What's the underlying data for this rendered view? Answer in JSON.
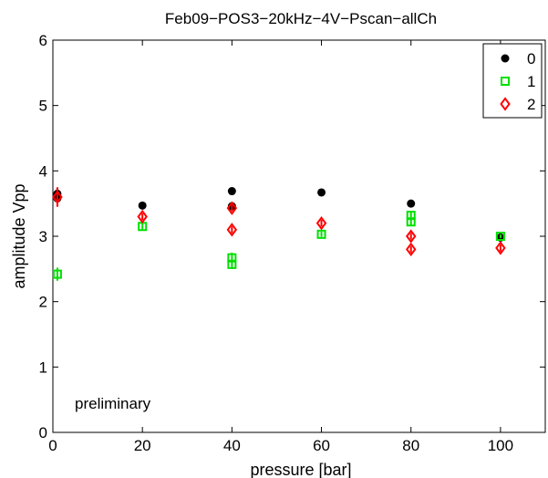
{
  "chart_data": {
    "type": "scatter",
    "title": "Feb09−POS3−20kHz−4V−Pscan−allCh",
    "xlabel": "pressure [bar]",
    "ylabel": "amplitude Vpp",
    "xlim": [
      0,
      110
    ],
    "ylim": [
      0,
      6
    ],
    "xticks": [
      0,
      20,
      40,
      60,
      80,
      100
    ],
    "yticks": [
      0,
      1,
      2,
      3,
      4,
      5,
      6
    ],
    "grid": false,
    "legend_position": "top-right",
    "annotation": "preliminary",
    "series": [
      {
        "name": "0",
        "marker": "filled-circle",
        "color": "#000000",
        "points": [
          {
            "x": 1,
            "y": 3.65,
            "err": 0.08
          },
          {
            "x": 1,
            "y": 3.58,
            "err": 0.05
          },
          {
            "x": 20,
            "y": 3.47,
            "err": 0.03
          },
          {
            "x": 40,
            "y": 3.69,
            "err": 0.03
          },
          {
            "x": 40,
            "y": 3.46,
            "err": 0.03
          },
          {
            "x": 60,
            "y": 3.67,
            "err": 0.03
          },
          {
            "x": 80,
            "y": 3.5,
            "err": 0.03
          },
          {
            "x": 100,
            "y": 2.98,
            "err": 0.03
          }
        ]
      },
      {
        "name": "1",
        "marker": "square",
        "color": "#00e000",
        "points": [
          {
            "x": 1,
            "y": 2.42,
            "err": 0.1
          },
          {
            "x": 20,
            "y": 3.15,
            "err": 0.05
          },
          {
            "x": 40,
            "y": 2.67,
            "err": 0.08
          },
          {
            "x": 40,
            "y": 2.57,
            "err": 0.07
          },
          {
            "x": 60,
            "y": 3.03,
            "err": 0.04
          },
          {
            "x": 80,
            "y": 3.32,
            "err": 0.06
          },
          {
            "x": 80,
            "y": 3.22,
            "err": 0.06
          },
          {
            "x": 100,
            "y": 3.0,
            "err": 0.03
          }
        ]
      },
      {
        "name": "2",
        "marker": "diamond",
        "color": "#ff0000",
        "points": [
          {
            "x": 1,
            "y": 3.6,
            "err": 0.15
          },
          {
            "x": 20,
            "y": 3.3,
            "err": 0.05
          },
          {
            "x": 40,
            "y": 3.43,
            "err": 0.05
          },
          {
            "x": 40,
            "y": 3.1,
            "err": 0.05
          },
          {
            "x": 60,
            "y": 3.2,
            "err": 0.05
          },
          {
            "x": 80,
            "y": 3.0,
            "err": 0.05
          },
          {
            "x": 80,
            "y": 2.8,
            "err": 0.05
          },
          {
            "x": 100,
            "y": 2.82,
            "err": 0.05
          }
        ]
      }
    ]
  }
}
